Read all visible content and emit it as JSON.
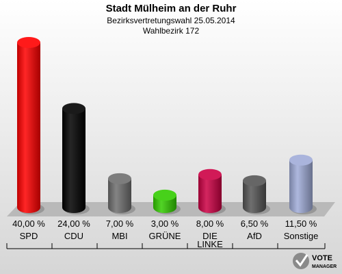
{
  "chart_data": {
    "type": "bar",
    "title": "Stadt Mülheim an der Ruhr",
    "subtitle_1": "Bezirksvertretungswahl 25.05.2014",
    "subtitle_2": "Wahlbezirk 172",
    "categories": [
      "SPD",
      "CDU",
      "MBI",
      "GRÜNE",
      "DIE LINKE",
      "AfD",
      "Sonstige"
    ],
    "values": [
      40.0,
      24.0,
      7.0,
      3.0,
      8.0,
      6.5,
      11.5
    ],
    "value_labels": [
      "40,00 %",
      "24,00 %",
      "7,00 %",
      "3,00 %",
      "8,00 %",
      "6,50 %",
      "11,50 %"
    ],
    "colors": [
      "#ff0000",
      "#000000",
      "#6e6e6e",
      "#33cc00",
      "#cc0044",
      "#555555",
      "#a0acd8"
    ],
    "ylim": [
      0,
      40
    ],
    "grid": false,
    "legend": "none"
  },
  "logo": {
    "line1": "VOTE",
    "line2": "MANAGER",
    "icon": "vote-manager-checkmark-icon"
  }
}
